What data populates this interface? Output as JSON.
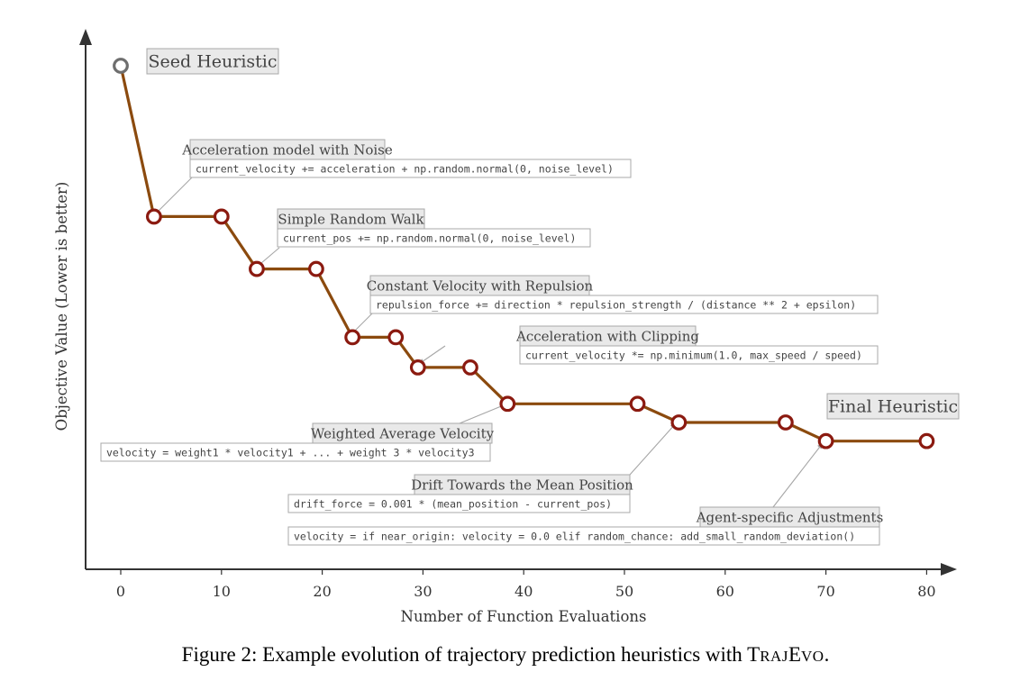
{
  "chart_data": {
    "type": "line",
    "xlabel": "Number of Function Evaluations",
    "ylabel": "Objective Value (Lower is better)",
    "xlim": [
      -3.5,
      83
    ],
    "x_ticks": [
      0,
      10,
      20,
      30,
      40,
      50,
      60,
      70,
      80
    ],
    "y_ticks_shown": false,
    "line_color": "#8b4a0e",
    "marker_color": "#8b1a10",
    "seed_marker_color": "#6e6e6e",
    "series": [
      {
        "values": [
          {
            "x": 0,
            "y": 100
          },
          {
            "x": 3.3,
            "y": 83
          },
          {
            "x": 10,
            "y": 83
          },
          {
            "x": 13.5,
            "y": 77.1
          },
          {
            "x": 19.4,
            "y": 77.1
          },
          {
            "x": 23,
            "y": 69.4
          },
          {
            "x": 27.3,
            "y": 69.4
          },
          {
            "x": 29.5,
            "y": 66
          },
          {
            "x": 34.7,
            "y": 66
          },
          {
            "x": 38.4,
            "y": 61.9
          },
          {
            "x": 51.3,
            "y": 61.9
          },
          {
            "x": 55.4,
            "y": 59.8
          },
          {
            "x": 66,
            "y": 59.8
          },
          {
            "x": 70,
            "y": 57.7
          },
          {
            "x": 80,
            "y": 57.7
          }
        ]
      }
    ],
    "annotations": [
      {
        "title": "Seed Heuristic"
      },
      {
        "title": "Acceleration model with Noise",
        "code": "current_velocity += acceleration + np.random.normal(0, noise_level)"
      },
      {
        "title": "Simple Random Walk",
        "code": "current_pos += np.random.normal(0, noise_level)"
      },
      {
        "title": "Constant Velocity with Repulsion",
        "code": "repulsion_force += direction * repulsion_strength / (distance ** 2 + epsilon)"
      },
      {
        "title": "Acceleration with Clipping",
        "code": "current_velocity *= np.minimum(1.0, max_speed / speed)"
      },
      {
        "title": "Weighted Average Velocity",
        "code": "velocity = weight1 * velocity1 +  ...  + weight 3 * velocity3"
      },
      {
        "title": "Drift Towards the Mean Position",
        "code": "drift_force = 0.001 * (mean_position - current_pos)"
      },
      {
        "title": "Agent-specific Adjustments",
        "code": "velocity = if near_origin: velocity = 0.0 elif random_chance: add_small_random_deviation()"
      },
      {
        "title": "Final Heuristic"
      }
    ]
  },
  "caption": {
    "prefix": "Figure 2: Example evolution of trajectory prediction heuristics with ",
    "name_T": "T",
    "name_raj": "RAJ",
    "name_E": "E",
    "name_vo": "VO",
    "suffix": "."
  }
}
